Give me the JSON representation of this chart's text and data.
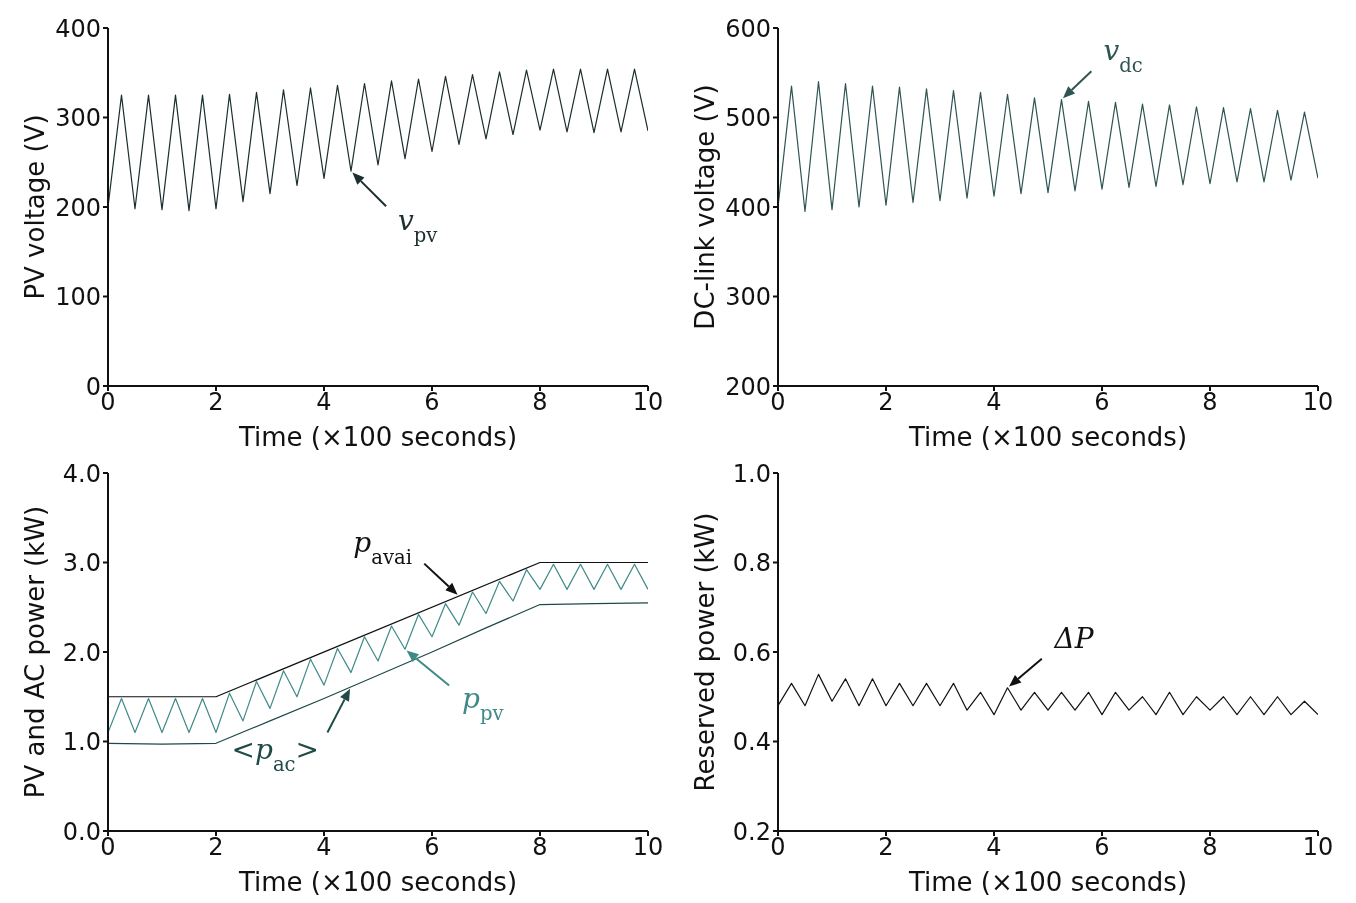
{
  "chart_data": [
    {
      "type": "line",
      "xlabel": "Time (×100 seconds)",
      "ylabel": "PV voltage (V)",
      "xlim": [
        0,
        10
      ],
      "xticks": [
        0,
        2,
        4,
        6,
        8,
        10
      ],
      "ylim": [
        0,
        400
      ],
      "yticks": [
        0,
        100,
        200,
        300,
        400
      ],
      "series": [
        {
          "name": "v$_{pv}$",
          "color": "#1c2e2e",
          "x": [
            0,
            0.25,
            0.5,
            0.75,
            1,
            1.25,
            1.5,
            1.75,
            2,
            2.25,
            2.5,
            2.75,
            3,
            3.25,
            3.5,
            3.75,
            4,
            4.25,
            4.5,
            4.75,
            5,
            5.25,
            5.5,
            5.75,
            6,
            6.25,
            6.5,
            6.75,
            7,
            7.25,
            7.5,
            7.75,
            8,
            8.25,
            8.5,
            8.75,
            9,
            9.25,
            9.5,
            9.75,
            10
          ],
          "values": [
            200,
            325,
            198,
            325,
            197,
            325,
            196,
            325,
            198,
            326,
            206,
            328,
            215,
            331,
            224,
            333,
            232,
            336,
            240,
            338,
            247,
            341,
            254,
            343,
            262,
            346,
            270,
            348,
            276,
            351,
            281,
            353,
            286,
            354,
            284,
            354,
            283,
            354,
            284,
            354,
            285
          ]
        }
      ]
    },
    {
      "type": "line",
      "xlabel": "Time (×100 seconds)",
      "ylabel": "DC-link voltage (V)",
      "xlim": [
        0,
        10
      ],
      "xticks": [
        0,
        2,
        4,
        6,
        8,
        10
      ],
      "ylim": [
        200,
        600
      ],
      "yticks": [
        200,
        300,
        400,
        500,
        600
      ],
      "series": [
        {
          "name": "v$_{dc}$",
          "color": "#2f5553",
          "x": [
            0,
            0.25,
            0.5,
            0.75,
            1,
            1.25,
            1.5,
            1.75,
            2,
            2.25,
            2.5,
            2.75,
            3,
            3.25,
            3.5,
            3.75,
            4,
            4.25,
            4.5,
            4.75,
            5,
            5.25,
            5.5,
            5.75,
            6,
            6.25,
            6.5,
            6.75,
            7,
            7.25,
            7.5,
            7.75,
            8,
            8.25,
            8.5,
            8.75,
            9,
            9.25,
            9.5,
            9.75,
            10
          ],
          "values": [
            400,
            535,
            395,
            540,
            397,
            538,
            400,
            535,
            402,
            534,
            405,
            532,
            407,
            530,
            410,
            528,
            412,
            526,
            415,
            522,
            416,
            520,
            418,
            518,
            420,
            517,
            422,
            515,
            423,
            514,
            425,
            512,
            426,
            511,
            428,
            510,
            428,
            508,
            430,
            506,
            432
          ]
        }
      ]
    },
    {
      "type": "line",
      "xlabel": "Time (×100 seconds)",
      "ylabel": "PV and AC power (kW)",
      "xlim": [
        0,
        10
      ],
      "xticks": [
        0,
        2,
        4,
        6,
        8,
        10
      ],
      "ylim": [
        0,
        4
      ],
      "yticks": [
        {
          "value": 0,
          "label": "0.0"
        },
        {
          "value": 1,
          "label": "1.0"
        },
        {
          "value": 2,
          "label": "2.0"
        },
        {
          "value": 3,
          "label": "3.0"
        },
        {
          "value": 4,
          "label": "4.0"
        }
      ],
      "series": [
        {
          "name": "p$_{pv}$",
          "color": "#3f8a88",
          "x": [
            0,
            0.25,
            0.5,
            0.75,
            1,
            1.25,
            1.5,
            1.75,
            2,
            2.25,
            2.5,
            2.75,
            3,
            3.25,
            3.5,
            3.75,
            4,
            4.25,
            4.5,
            4.75,
            5,
            5.25,
            5.5,
            5.75,
            6,
            6.25,
            6.5,
            6.75,
            7,
            7.25,
            7.5,
            7.75,
            8,
            8.25,
            8.5,
            8.75,
            9,
            9.25,
            9.5,
            9.75,
            10
          ],
          "values": [
            1.1,
            1.48,
            1.1,
            1.48,
            1.1,
            1.48,
            1.1,
            1.48,
            1.1,
            1.54,
            1.23,
            1.67,
            1.37,
            1.79,
            1.5,
            1.92,
            1.63,
            2.04,
            1.77,
            2.17,
            1.9,
            2.29,
            2.03,
            2.42,
            2.17,
            2.54,
            2.3,
            2.67,
            2.43,
            2.79,
            2.57,
            2.92,
            2.7,
            2.98,
            2.7,
            2.98,
            2.7,
            2.98,
            2.7,
            2.98,
            2.7
          ]
        },
        {
          "name": "<p$_{ac}$>",
          "color": "#1e4a48",
          "x": [
            0,
            1,
            2,
            3,
            4,
            5,
            6,
            7,
            8,
            9,
            10
          ],
          "values": [
            0.98,
            0.97,
            0.98,
            1.23,
            1.48,
            1.74,
            2.0,
            2.27,
            2.53,
            2.54,
            2.55
          ]
        },
        {
          "name": "p$_{avai}$",
          "color": "#111111",
          "x": [
            0,
            2,
            8,
            10
          ],
          "values": [
            1.5,
            1.5,
            3.0,
            3.0
          ]
        }
      ]
    },
    {
      "type": "line",
      "xlabel": "Time (×100 seconds)",
      "ylabel": "Reserved power (kW)",
      "xlim": [
        0,
        10
      ],
      "xticks": [
        0,
        2,
        4,
        6,
        8,
        10
      ],
      "ylim": [
        0.2,
        1.0
      ],
      "yticks": [
        0.2,
        0.4,
        0.6,
        0.8,
        {
          "value": 1,
          "label": "1.0"
        }
      ],
      "series": [
        {
          "name": "ΔP",
          "color": "#111111",
          "x": [
            0,
            0.25,
            0.5,
            0.75,
            1,
            1.25,
            1.5,
            1.75,
            2,
            2.25,
            2.5,
            2.75,
            3,
            3.25,
            3.5,
            3.75,
            4,
            4.25,
            4.5,
            4.75,
            5,
            5.25,
            5.5,
            5.75,
            6,
            6.25,
            6.5,
            6.75,
            7,
            7.25,
            7.5,
            7.75,
            8,
            8.25,
            8.5,
            8.75,
            9,
            9.25,
            9.5,
            9.75,
            10
          ],
          "values": [
            0.48,
            0.53,
            0.48,
            0.55,
            0.49,
            0.54,
            0.48,
            0.54,
            0.48,
            0.53,
            0.48,
            0.53,
            0.48,
            0.53,
            0.47,
            0.51,
            0.46,
            0.52,
            0.47,
            0.51,
            0.47,
            0.51,
            0.47,
            0.51,
            0.46,
            0.51,
            0.47,
            0.5,
            0.46,
            0.51,
            0.46,
            0.5,
            0.47,
            0.5,
            0.46,
            0.5,
            0.46,
            0.5,
            0.46,
            0.49,
            0.46
          ]
        }
      ]
    }
  ]
}
